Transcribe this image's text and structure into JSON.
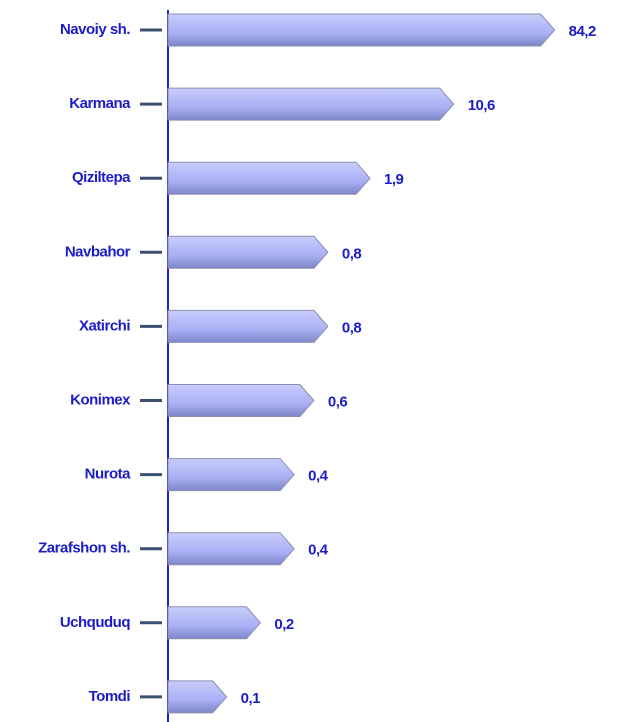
{
  "chart_data": {
    "type": "bar",
    "orientation": "horizontal",
    "categories": [
      "Navoiy sh.",
      "Karmana",
      "Qiziltepa",
      "Navbahor",
      "Xatirchi",
      "Konimex",
      "Nurota",
      "Zarafshon sh.",
      "Uchquduq",
      "Tomdi"
    ],
    "values": [
      84.2,
      10.6,
      1.9,
      0.8,
      0.8,
      0.6,
      0.4,
      0.4,
      0.2,
      0.1
    ],
    "value_labels": [
      "84,2",
      "10,6",
      "1,9",
      "0,8",
      "0,8",
      "0,6",
      "0,4",
      "0,4",
      "0,2",
      "0,1"
    ],
    "color": "#a9b0f5",
    "log_scale": true,
    "xlim": [
      0.03,
      100
    ]
  }
}
